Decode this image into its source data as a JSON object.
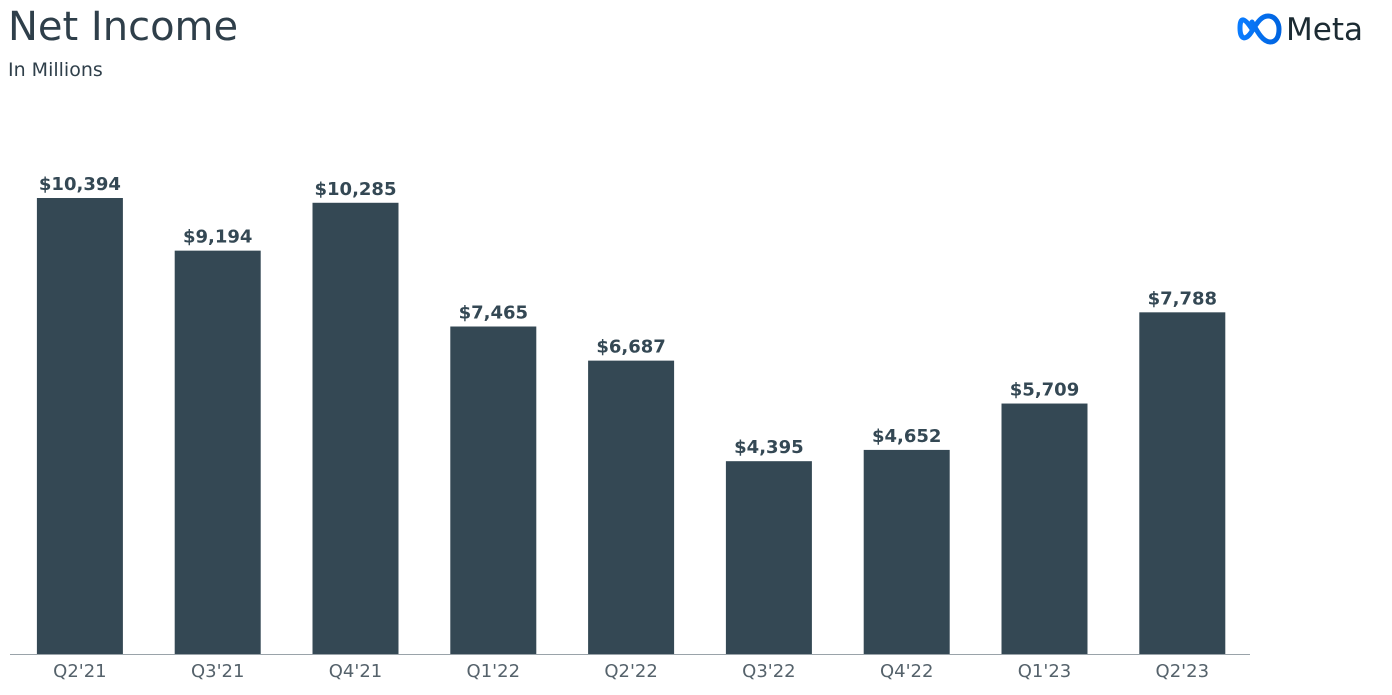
{
  "chart_data": {
    "type": "bar",
    "title": "Net Income",
    "subtitle": "In Millions",
    "logo": "Meta",
    "categories": [
      "Q2'21",
      "Q3'21",
      "Q4'21",
      "Q1'22",
      "Q2'22",
      "Q3'22",
      "Q4'22",
      "Q1'23",
      "Q2'23"
    ],
    "values": [
      10394,
      9194,
      10285,
      7465,
      6687,
      4395,
      4652,
      5709,
      7788
    ],
    "value_labels": [
      "$10,394",
      "$9,194",
      "$10,285",
      "$7,465",
      "$6,687",
      "$4,395",
      "$4,652",
      "$5,709",
      "$7,788"
    ],
    "color": "#344854"
  }
}
